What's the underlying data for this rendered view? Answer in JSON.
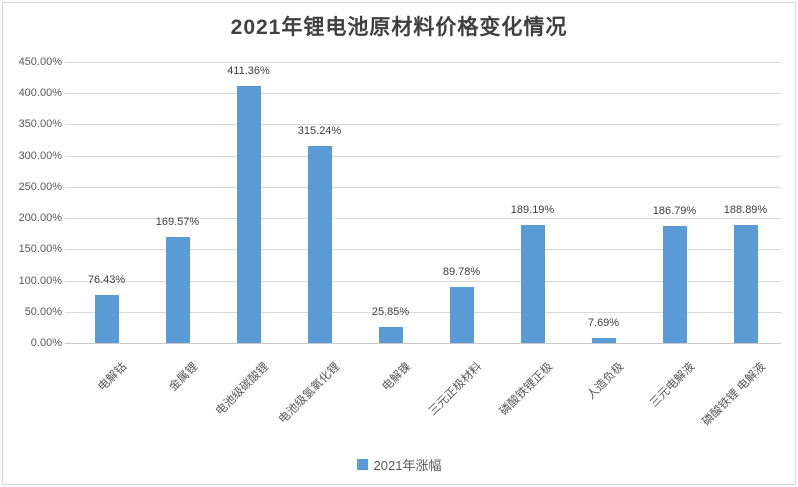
{
  "title": "2021年锂电池原材料价格变化情况",
  "legend": {
    "label": "2021年涨幅",
    "marker_color": "#5b9bd5"
  },
  "colors": {
    "bar": "#5b9bd5",
    "gridline": "#d9d9d9",
    "axis_text": "#595959",
    "label_text": "#404040",
    "title_text": "#404040",
    "border": "#d7d7d7"
  },
  "chart_data": {
    "type": "bar",
    "title": "2021年锂电池原材料价格变化情况",
    "series_name": "2021年涨幅",
    "categories": [
      "电解钴",
      "金属锂",
      "电池级碳酸锂",
      "电池级氢氧化锂",
      "电解镍",
      "三元正极材料",
      "磷酸铁锂正极",
      "人造负极",
      "三元电解液",
      "磷酸铁锂 电解液"
    ],
    "values": [
      76.43,
      169.57,
      411.36,
      315.24,
      25.85,
      89.78,
      189.19,
      7.69,
      186.79,
      188.89
    ],
    "value_labels": [
      "76.43%",
      "169.57%",
      "411.36%",
      "315.24%",
      "25.85%",
      "89.78%",
      "189.19%",
      "7.69%",
      "186.79%",
      "188.89%"
    ],
    "xlabel": "",
    "ylabel": "",
    "ylim": [
      0,
      450
    ],
    "y_tick_step": 50,
    "y_ticks": [
      "0.00%",
      "50.00%",
      "100.00%",
      "150.00%",
      "200.00%",
      "250.00%",
      "300.00%",
      "350.00%",
      "400.00%",
      "450.00%"
    ],
    "grid": true,
    "legend_position": "bottom"
  }
}
